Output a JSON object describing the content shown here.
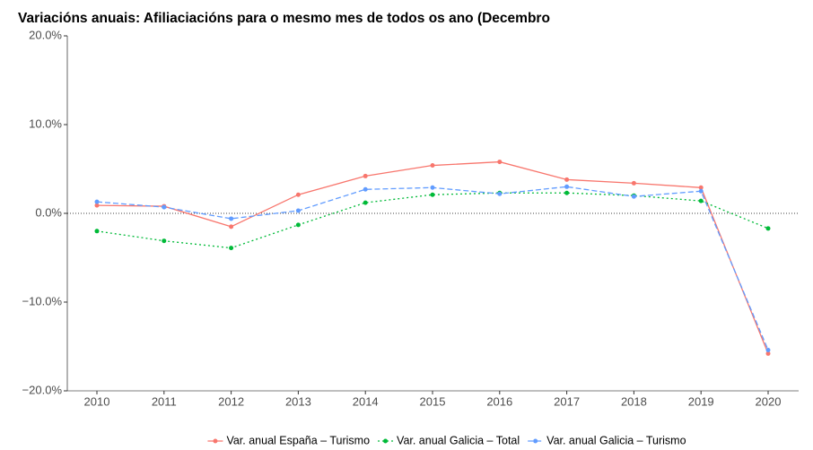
{
  "chart_data": {
    "type": "line",
    "title": "Variacións anuais: Afiliaciacións para o mesmo mes de todos os ano (Decembro",
    "categories": [
      "2010",
      "2011",
      "2012",
      "2013",
      "2014",
      "2015",
      "2016",
      "2017",
      "2018",
      "2019",
      "2020"
    ],
    "series": [
      {
        "name": "Var. anual España – Turismo",
        "color": "#f8766d",
        "dash": "solid",
        "values": [
          0.9,
          0.8,
          -1.5,
          2.1,
          4.2,
          5.4,
          5.8,
          3.8,
          3.4,
          2.9,
          -15.8
        ]
      },
      {
        "name": "Var. anual Galicia – Total",
        "color": "#00ba38",
        "dash": "dotted",
        "values": [
          -2.0,
          -3.1,
          -3.9,
          -1.3,
          1.2,
          2.1,
          2.3,
          2.3,
          2.0,
          1.4,
          -1.7
        ]
      },
      {
        "name": "Var. anual Galicia – Turismo",
        "color": "#619cff",
        "dash": "dashed",
        "values": [
          1.3,
          0.7,
          -0.6,
          0.3,
          2.7,
          2.9,
          2.2,
          3.0,
          1.9,
          2.5,
          -15.4
        ]
      }
    ],
    "ylim": [
      -20,
      20
    ],
    "yticks": [
      {
        "value": -20,
        "label": "−20.0%"
      },
      {
        "value": -10,
        "label": "−10.0%"
      },
      {
        "value": 0,
        "label": "0.0%"
      },
      {
        "value": 10,
        "label": "10.0%"
      },
      {
        "value": 20,
        "label": "20.0%"
      }
    ],
    "reference_line": 0,
    "legend": "bottom"
  }
}
